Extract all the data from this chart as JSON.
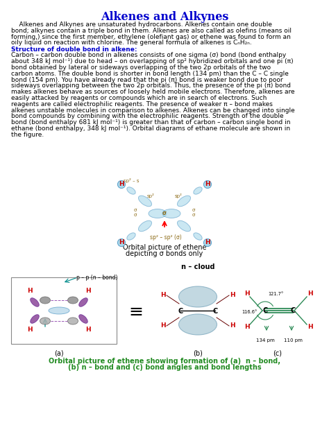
{
  "title": "Alkenes and Alkynes",
  "title_color": "#0000CD",
  "title_fontsize": 11.5,
  "body_fontsize": 6.5,
  "background_color": "#ffffff",
  "section_heading": "Structure of double bond in alkene:",
  "section_heading_color": "#0000CD",
  "caption1_line1": "Orbital picture of ethene",
  "caption1_line2": "depicting σ bonds only",
  "caption2_line1": "Orbital picture of ethene showing formation of (a)  n – bond,",
  "caption2_line2": "(b) n – bond and (c) bond angles and bond lengths",
  "caption2_color": "#228B22",
  "label_a": "(a)",
  "label_b": "(b)",
  "label_c": "(c)",
  "p1_lines": [
    "    Alkenes and Alkynes are unsaturated hydrocarbons. Alkenes contain one double",
    "bond; alkynes contain a triple bond in them. Alkenes are also called as olefins (means oil",
    "forming,) since the first member, ethylene (olefiant gas) or ethene was found to form an",
    "oily liquid on reaction with chlorine. The general formula of alkenes is CₙH₂ₙ."
  ],
  "p2_lines": [
    "Carbon – carbon double bond in alkenes consists of one sigma (σ) bond (bond enthalpy",
    "about 348 kJ mol⁻¹) due to head – on overlapping of sp² hybridized orbitals and one pi (π)",
    "bond obtained by lateral or sideways overlapping of the two 2p orbitals of the two",
    "carbon atoms. The double bond is shorter in bond length (134 pm) than the C – C single",
    "bond (154 pm). You have already read that the pi (π) bond is weaker bond due to poor",
    "sideways overlapping between the two 2p orbitals. Thus, the presence of the pi (π) bond",
    "makes alkenes behave as sources of loosely held mobile electrons. Therefore, alkenes are",
    "easily attacked by reagents or compounds which are in search of electrons. Such",
    "reagents are called electrophilic reagents. The presence of weaker π – bond makes",
    "alkenes unstable molecules in comparison to alkenes. Alkenes can be changed into single",
    "bond compounds by combining with the electrophilic reagents. Strength of the double",
    "bond (bond enthalpy 681 kJ mol⁻¹) is greater than that of carbon – carbon single bond in",
    "ethane (bond enthalpy, 348 kJ mol⁻¹). Orbital diagrams of ethane molecule are shown in",
    "the figure."
  ]
}
